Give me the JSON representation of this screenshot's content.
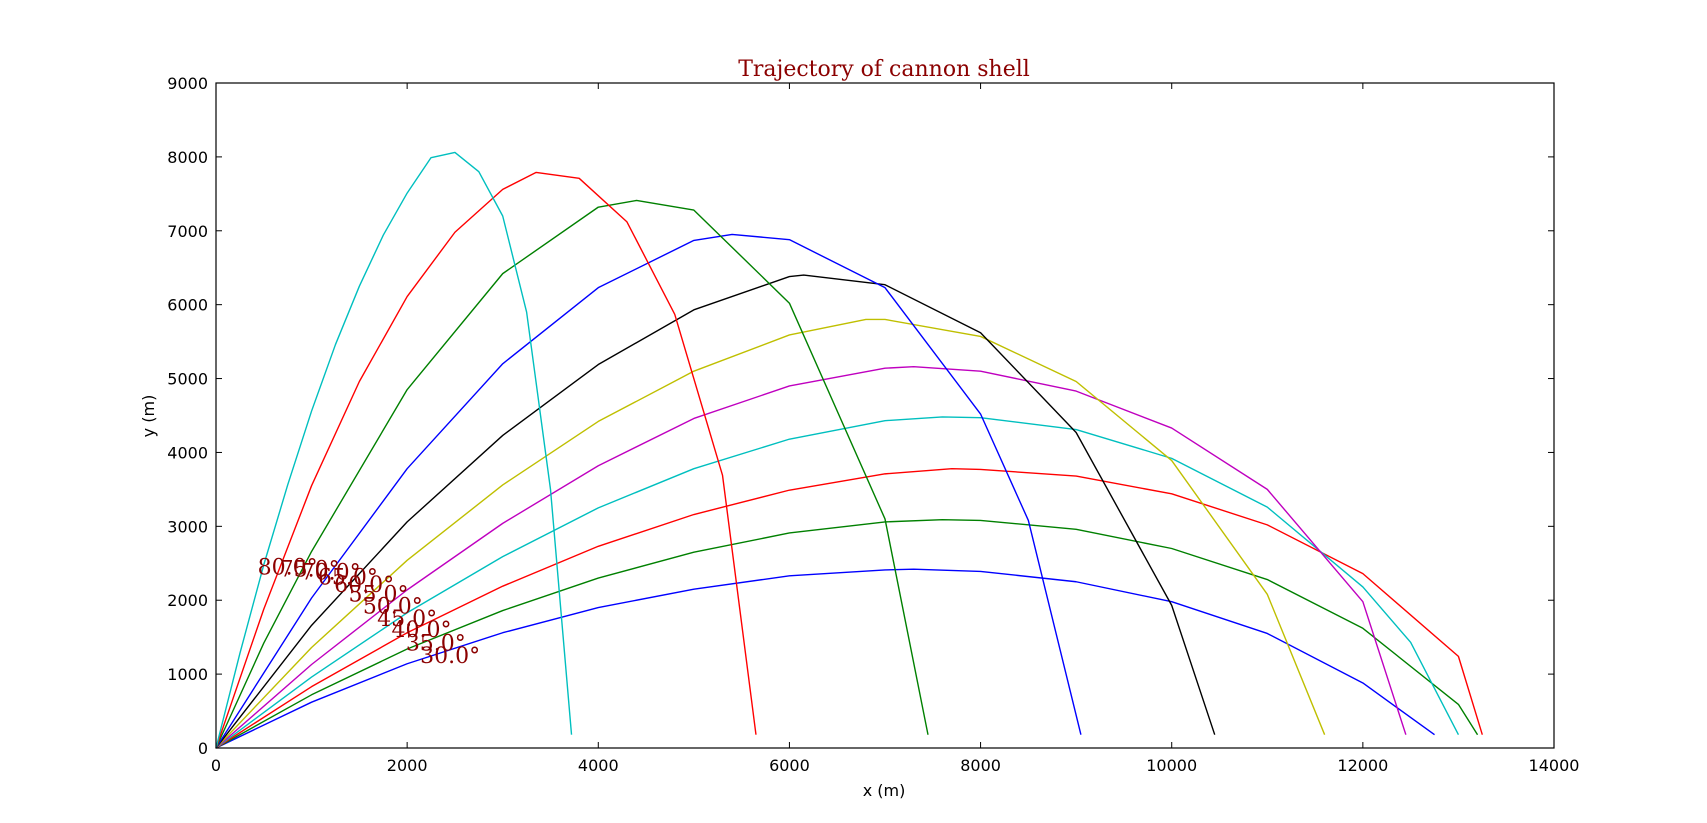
{
  "chart_data": {
    "type": "line",
    "title": "Trajectory of cannon shell",
    "xlabel": "x (m)",
    "ylabel": "y (m)",
    "xlim": [
      0,
      14000
    ],
    "ylim": [
      0,
      9000
    ],
    "xticks": [
      0,
      2000,
      4000,
      6000,
      8000,
      10000,
      12000,
      14000
    ],
    "yticks": [
      0,
      1000,
      2000,
      3000,
      4000,
      5000,
      6000,
      7000,
      8000,
      9000
    ],
    "grid": false,
    "legend": "none",
    "series": [
      {
        "color": "#0000ff",
        "angle_label": "30.0°",
        "label_x": 2450,
        "label_y": 1150,
        "x": [
          0,
          1000,
          2000,
          3000,
          4000,
          5000,
          6000,
          7000,
          7300,
          8000,
          9000,
          10000,
          11000,
          12000,
          12750
        ],
        "y": [
          0,
          620,
          1140,
          1560,
          1900,
          2150,
          2330,
          2410,
          2420,
          2390,
          2250,
          1980,
          1550,
          880,
          180
        ]
      },
      {
        "color": "#008000",
        "angle_label": "35.0°",
        "label_x": 2300,
        "label_y": 1320,
        "x": [
          0,
          1000,
          2000,
          3000,
          4000,
          5000,
          6000,
          7000,
          7600,
          8000,
          9000,
          10000,
          11000,
          12000,
          13000,
          13200
        ],
        "y": [
          0,
          720,
          1340,
          1860,
          2300,
          2650,
          2910,
          3060,
          3090,
          3080,
          2960,
          2700,
          2280,
          1620,
          590,
          180
        ]
      },
      {
        "color": "#ff0000",
        "angle_label": "40.0°",
        "label_x": 2150,
        "label_y": 1500,
        "x": [
          0,
          1000,
          2000,
          3000,
          4000,
          5000,
          6000,
          7000,
          7700,
          8000,
          9000,
          10000,
          11000,
          12000,
          13000,
          13250
        ],
        "y": [
          0,
          830,
          1560,
          2190,
          2730,
          3160,
          3490,
          3710,
          3780,
          3770,
          3680,
          3440,
          3020,
          2360,
          1240,
          180
        ]
      },
      {
        "color": "#00bfbf",
        "angle_label": "45.0°",
        "label_x": 2000,
        "label_y": 1650,
        "x": [
          0,
          1000,
          2000,
          3000,
          4000,
          5000,
          6000,
          7000,
          7600,
          8000,
          9000,
          10000,
          11000,
          12000,
          12500,
          13000
        ],
        "y": [
          0,
          960,
          1830,
          2590,
          3250,
          3780,
          4180,
          4430,
          4480,
          4470,
          4310,
          3920,
          3260,
          2180,
          1430,
          180
        ]
      },
      {
        "color": "#bf00bf",
        "angle_label": "50.0°",
        "label_x": 1850,
        "label_y": 1820,
        "x": [
          0,
          1000,
          2000,
          3000,
          4000,
          5000,
          6000,
          7000,
          7300,
          8000,
          9000,
          10000,
          11000,
          12000,
          12450
        ],
        "y": [
          0,
          1130,
          2140,
          3040,
          3820,
          4460,
          4900,
          5140,
          5160,
          5100,
          4830,
          4330,
          3500,
          1980,
          180
        ]
      },
      {
        "color": "#bfbf00",
        "angle_label": "55.0°",
        "label_x": 1700,
        "label_y": 1980,
        "x": [
          0,
          1000,
          2000,
          3000,
          4000,
          5000,
          6000,
          6800,
          7000,
          8000,
          9000,
          10000,
          11000,
          11600
        ],
        "y": [
          0,
          1360,
          2540,
          3560,
          4420,
          5100,
          5590,
          5800,
          5800,
          5570,
          4960,
          3890,
          2080,
          180
        ]
      },
      {
        "color": "#000000",
        "angle_label": "60.0°",
        "label_x": 1550,
        "label_y": 2110,
        "x": [
          0,
          1000,
          2000,
          3000,
          4000,
          5000,
          6000,
          6150,
          7000,
          8000,
          9000,
          10000,
          10450
        ],
        "y": [
          0,
          1660,
          3060,
          4230,
          5190,
          5930,
          6380,
          6400,
          6270,
          5620,
          4270,
          1930,
          180
        ]
      },
      {
        "color": "#0000ff",
        "angle_label": "65.0°",
        "label_x": 1380,
        "label_y": 2210,
        "x": [
          0,
          1000,
          2000,
          3000,
          4000,
          5000,
          5400,
          6000,
          7000,
          8000,
          8500,
          9050
        ],
        "y": [
          0,
          2030,
          3780,
          5200,
          6230,
          6870,
          6950,
          6880,
          6230,
          4520,
          3080,
          180
        ]
      },
      {
        "color": "#008000",
        "angle_label": "70.0°",
        "label_x": 1200,
        "label_y": 2280,
        "x": [
          0,
          500,
          1000,
          2000,
          3000,
          4000,
          4400,
          5000,
          6000,
          7000,
          7450
        ],
        "y": [
          0,
          1420,
          2660,
          4850,
          6420,
          7320,
          7410,
          7280,
          6020,
          3100,
          180
        ]
      },
      {
        "color": "#ff0000",
        "angle_label": "75.0°",
        "label_x": 980,
        "label_y": 2320,
        "x": [
          0,
          500,
          1000,
          1500,
          2000,
          2500,
          3000,
          3350,
          3800,
          4300,
          4800,
          5300,
          5650
        ],
        "y": [
          0,
          1880,
          3550,
          4960,
          6110,
          6980,
          7560,
          7790,
          7710,
          7120,
          5870,
          3690,
          180
        ]
      },
      {
        "color": "#00bfbf",
        "angle_label": "80.0°",
        "label_x": 750,
        "label_y": 2350,
        "x": [
          0,
          250,
          500,
          750,
          1000,
          1250,
          1500,
          1750,
          2000,
          2250,
          2500,
          2750,
          3000,
          3250,
          3500,
          3720
        ],
        "y": [
          0,
          1280,
          2480,
          3560,
          4560,
          5460,
          6250,
          6940,
          7510,
          7990,
          8060,
          7800,
          7200,
          5900,
          3500,
          180
        ]
      }
    ]
  }
}
